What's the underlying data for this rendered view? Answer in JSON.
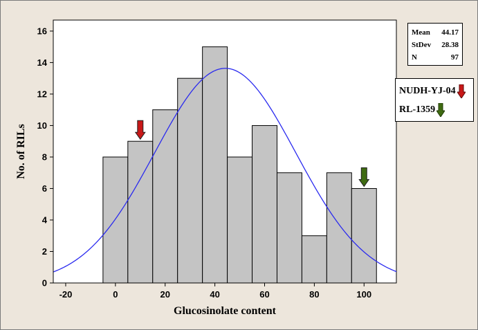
{
  "chart_data": {
    "type": "bar",
    "subtype": "histogram",
    "xlabel": "Glucosinolate content",
    "ylabel": "No. of RILs",
    "xlim": [
      -25,
      113
    ],
    "ylim": [
      0,
      16.7
    ],
    "x_ticks": [
      -20,
      0,
      20,
      40,
      60,
      80,
      100
    ],
    "y_ticks": [
      0,
      2,
      4,
      6,
      8,
      10,
      12,
      14,
      16
    ],
    "bin_width": 10,
    "bins": [
      {
        "from": -5,
        "to": 5,
        "value": 8
      },
      {
        "from": 5,
        "to": 15,
        "value": 9
      },
      {
        "from": 15,
        "to": 25,
        "value": 11
      },
      {
        "from": 25,
        "to": 35,
        "value": 13
      },
      {
        "from": 35,
        "to": 45,
        "value": 15
      },
      {
        "from": 45,
        "to": 55,
        "value": 8
      },
      {
        "from": 55,
        "to": 65,
        "value": 10
      },
      {
        "from": 65,
        "to": 75,
        "value": 7
      },
      {
        "from": 75,
        "to": 85,
        "value": 3
      },
      {
        "from": 85,
        "to": 95,
        "value": 7
      },
      {
        "from": 95,
        "to": 105,
        "value": 6
      }
    ],
    "normal_fit": {
      "mean": 44.17,
      "stdev": 28.38,
      "n": 97
    },
    "bar_color": "#c4c4c4",
    "curve_color": "#2a2aef",
    "grid": false,
    "stats": [
      {
        "label": "Mean",
        "value": "44.17"
      },
      {
        "label": "StDev",
        "value": "28.38"
      },
      {
        "label": "N",
        "value": "97"
      }
    ],
    "markers": [
      {
        "name": "NUDH-YJ-04",
        "x": 10,
        "value": 9,
        "color": "#c81818"
      },
      {
        "name": "RL-1359",
        "x": 100,
        "value": 6,
        "color": "#3f6b12"
      }
    ]
  }
}
